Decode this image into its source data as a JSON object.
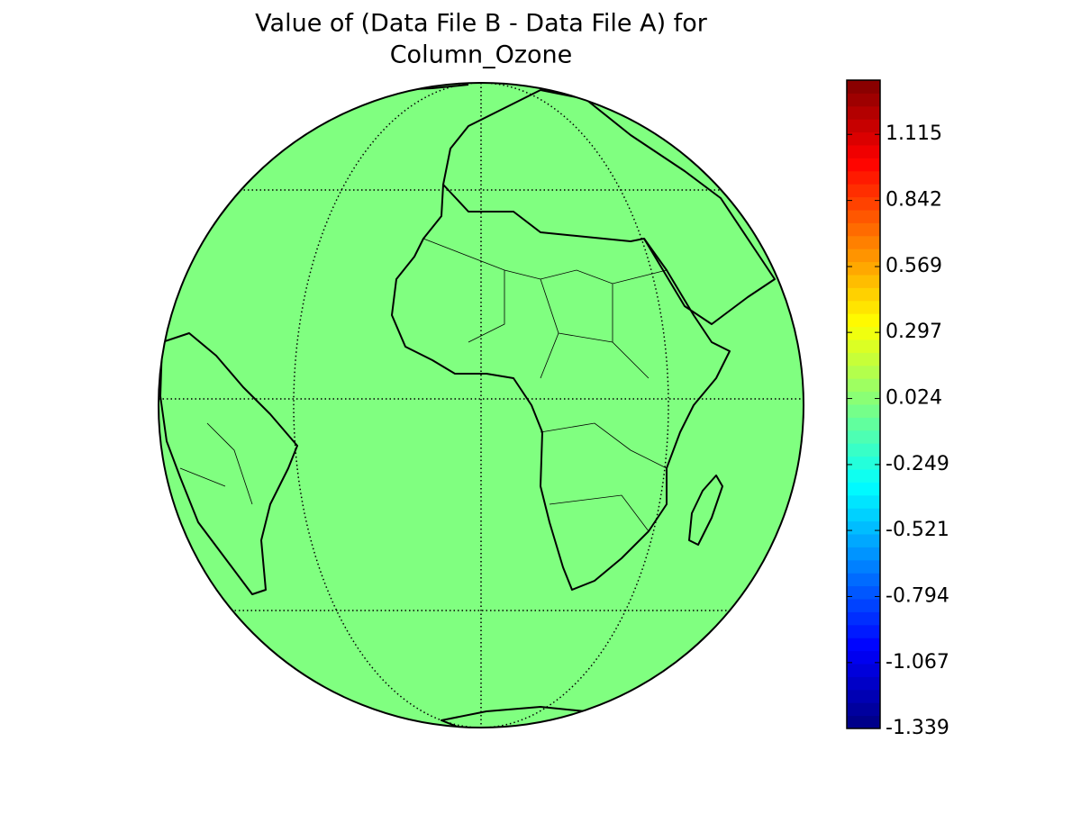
{
  "chart_data": {
    "type": "map",
    "title_lines": [
      "Value of (Data File B - Data File A) for",
      "Column_Ozone"
    ],
    "projection": "orthographic",
    "colormap": "jet",
    "value": 0,
    "clim": [
      -1.339,
      1.339
    ],
    "cticks": [
      -1.339,
      -1.067,
      -0.794,
      -0.521,
      -0.249,
      0.024,
      0.297,
      0.569,
      0.842,
      1.115
    ]
  }
}
